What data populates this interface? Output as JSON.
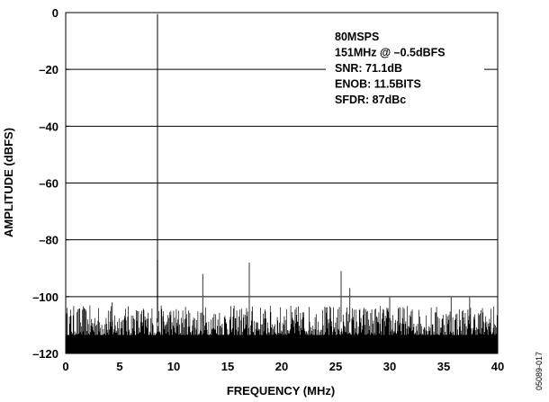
{
  "chart_data": {
    "type": "line",
    "title": "",
    "xlabel": "FREQUENCY (MHz)",
    "ylabel": "AMPLITUDE (dBFS)",
    "xlim": [
      0,
      40
    ],
    "ylim": [
      -120,
      0
    ],
    "x_ticks": [
      0,
      5,
      10,
      15,
      20,
      25,
      30,
      35,
      40
    ],
    "x_tick_labels": [
      "0",
      "5",
      "10",
      "15",
      "20",
      "25",
      "30",
      "35",
      "40"
    ],
    "y_ticks": [
      0,
      -20,
      -40,
      -60,
      -80,
      -100,
      -120
    ],
    "y_tick_labels": [
      "0",
      "–20",
      "–40",
      "–60",
      "–80",
      "–100",
      "–120"
    ],
    "grid": "horizontal",
    "noise_floor_dbfs": [
      -112,
      -103
    ],
    "fundamental": {
      "x": 8.5,
      "y": -0.5
    },
    "spurs": [
      {
        "x": 4.3,
        "y": -102
      },
      {
        "x": 8.5,
        "y": -87
      },
      {
        "x": 12.7,
        "y": -92
      },
      {
        "x": 17.0,
        "y": -88
      },
      {
        "x": 25.5,
        "y": -91
      },
      {
        "x": 26.3,
        "y": -97
      },
      {
        "x": 30.0,
        "y": -100
      },
      {
        "x": 35.7,
        "y": -100
      },
      {
        "x": 37.4,
        "y": -100
      }
    ],
    "annotations": [
      "80MSPS",
      "151MHz @ –0.5dBFS",
      "SNR: 71.1dB",
      "ENOB: 11.5BITS",
      "SFDR: 87dBc"
    ],
    "figure_id": "05089-017"
  }
}
